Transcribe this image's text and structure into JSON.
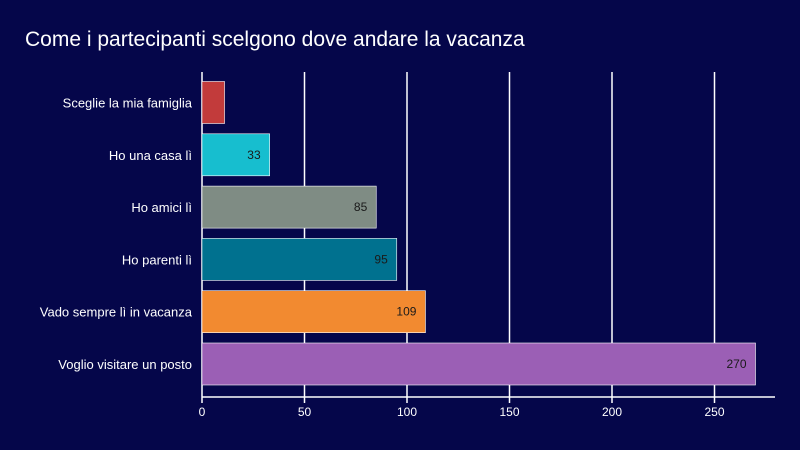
{
  "chart_data": {
    "type": "bar",
    "orientation": "horizontal",
    "title": "Come i partecipanti scelgono dove andare la vacanza",
    "xlabel": "",
    "ylabel": "",
    "xlim": [
      0,
      280
    ],
    "x_ticks": [
      0,
      50,
      100,
      150,
      200,
      250
    ],
    "grid": true,
    "categories": [
      "Sceglie la mia famiglia",
      "Ho una casa lì",
      "Ho amici lì",
      "Ho parenti lì",
      "Vado sempre lì in vacanza",
      "Voglio visitare un posto"
    ],
    "values": [
      11,
      33,
      85,
      95,
      109,
      270
    ],
    "data_labels": [
      "",
      "33",
      "85",
      "95",
      "109",
      "270"
    ],
    "colors": [
      "#c23b3b",
      "#17becf",
      "#7f8c84",
      "#00718f",
      "#f28a30",
      "#9b5fb5"
    ]
  },
  "colors": {
    "background": "#05064a",
    "grid": "#ffffff",
    "text": "#ffffff",
    "label_text": "#1a1a1a"
  }
}
